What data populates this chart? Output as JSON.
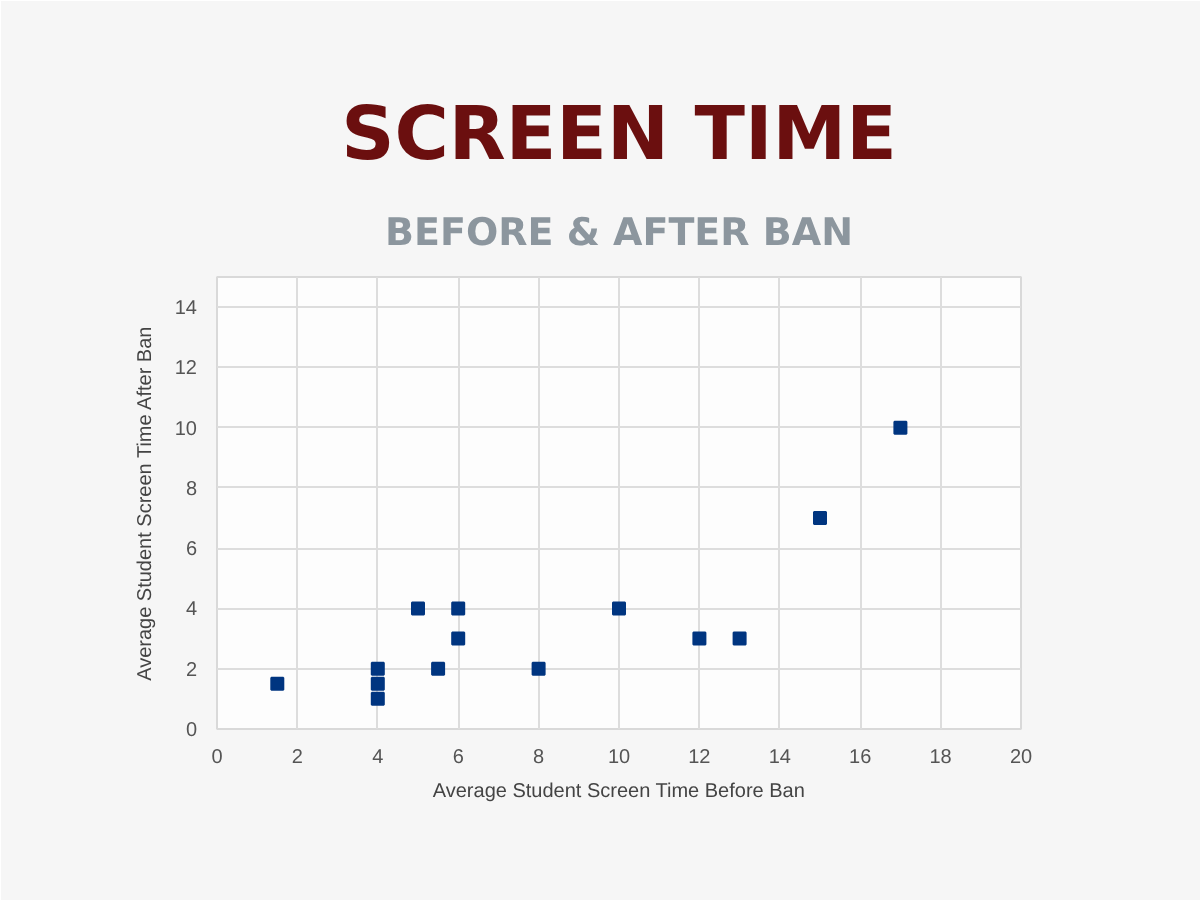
{
  "chart_data": {
    "type": "scatter",
    "title": "SCREEN TIME",
    "subtitle": "BEFORE & AFTER BAN",
    "xlabel": "Average Student Screen Time Before Ban",
    "ylabel": "Average Student Screen Time After Ban",
    "x": [
      1.5,
      4,
      4,
      4,
      5,
      5.5,
      6,
      6,
      8,
      10,
      12,
      13,
      15,
      17
    ],
    "values": [
      1.5,
      2,
      1.5,
      1,
      4,
      2,
      4,
      3,
      2,
      4,
      3,
      3,
      7,
      10
    ],
    "color": "#003580",
    "marker": "square",
    "xlim": [
      0,
      20
    ],
    "ylim": [
      0,
      15
    ],
    "xticks": [
      0,
      2,
      4,
      6,
      8,
      10,
      12,
      14,
      16,
      18,
      20
    ],
    "yticks": [
      0,
      2,
      4,
      6,
      8,
      10,
      12,
      14
    ],
    "grid": true
  }
}
